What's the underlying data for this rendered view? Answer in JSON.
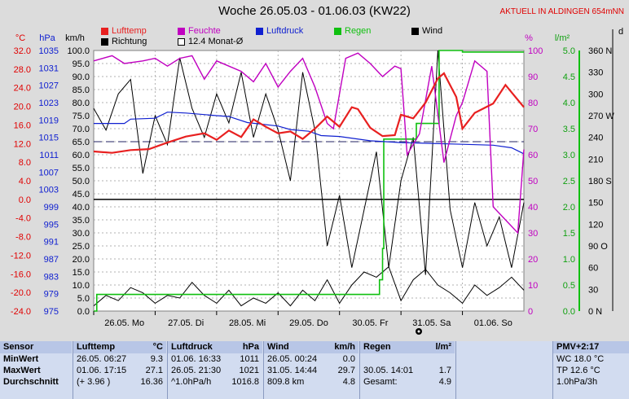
{
  "title": "Woche 26.05.03 - 01.06.03 (KW22)",
  "station": "AKTUELL IN ALDINGEN 654mNN",
  "legend": [
    {
      "label": "Lufttemp",
      "color": "#e82020"
    },
    {
      "label": "Feuchte",
      "color": "#c000c0"
    },
    {
      "label": "Luftdruck",
      "color": "#1020d0"
    },
    {
      "label": "Regen",
      "color": "#10c010"
    },
    {
      "label": "Wind",
      "color": "#000000"
    },
    {
      "label": "Richtung",
      "color": "#000000"
    },
    {
      "label": "12.4 Monat-Ø",
      "color": "#ffffff"
    }
  ],
  "units": {
    "temp": "°C",
    "pressure": "hPa",
    "wind": "km/h",
    "humidity": "%",
    "rain": "l/m²",
    "direction": "d"
  },
  "axes": {
    "temp": {
      "ticks": [
        "32.0",
        "28.0",
        "24.0",
        "20.0",
        "16.0",
        "12.0",
        "8.0",
        "4.0",
        "0.0",
        "-4.0",
        "-8.0",
        "-12.0",
        "-16.0",
        "-20.0",
        "-24.0"
      ]
    },
    "pressure": {
      "ticks": [
        "1035",
        "1031",
        "1027",
        "1023",
        "1019",
        "1015",
        "1011",
        "1007",
        "1003",
        "999",
        "995",
        "991",
        "987",
        "983",
        "979",
        "975"
      ]
    },
    "wind": {
      "ticks": [
        "100.0",
        "95.0",
        "90.0",
        "85.0",
        "80.0",
        "75.0",
        "70.0",
        "65.0",
        "60.0",
        "55.0",
        "50.0",
        "45.0",
        "40.0",
        "35.0",
        "30.0",
        "25.0",
        "20.0",
        "15.0",
        "10.0",
        "5.0",
        "0.0"
      ]
    },
    "humidity": {
      "ticks": [
        "100",
        "90",
        "80",
        "70",
        "60",
        "50",
        "40",
        "30",
        "20",
        "10",
        "0"
      ]
    },
    "rain": {
      "ticks": [
        "5.0",
        "4.5",
        "4.0",
        "3.5",
        "3.0",
        "2.5",
        "2.0",
        "1.5",
        "1.0",
        "0.5",
        "0.0"
      ]
    },
    "direction": {
      "ticks": [
        "360 N",
        "330",
        "300",
        "270 W",
        "240",
        "210",
        "180 S",
        "150",
        "120",
        "90 O",
        "60",
        "30",
        "0 N"
      ]
    }
  },
  "chart_data": {
    "type": "line",
    "title": "Woche 26.05.03 - 01.06.03 (KW22)",
    "x_ticks": [
      "26.05. Mo",
      "27.05. Di",
      "28.05. Mi",
      "29.05. Do",
      "30.05. Fr",
      "31.05. Sa",
      "01.06. So"
    ],
    "x_range_days": [
      0,
      7
    ],
    "series": [
      {
        "name": "Lufttemp",
        "unit": "°C",
        "color": "#e82020",
        "x": [
          0,
          0.3,
          0.6,
          0.9,
          1.2,
          1.5,
          1.8,
          2.0,
          2.2,
          2.4,
          2.6,
          2.8,
          3.0,
          3.2,
          3.4,
          3.6,
          3.8,
          4.0,
          4.2,
          4.3,
          4.5,
          4.7,
          4.9,
          5.0,
          5.2,
          5.4,
          5.6,
          5.7,
          5.9,
          6.0,
          6.2,
          6.5,
          6.7,
          7.0
        ],
        "y": [
          10.3,
          10.0,
          10.6,
          10.8,
          12.2,
          13.5,
          14.2,
          12.8,
          14.8,
          13.4,
          17.2,
          15.6,
          14.2,
          14.6,
          13.0,
          15.2,
          17.8,
          15.6,
          19.8,
          19.4,
          15.4,
          13.6,
          13.8,
          18.2,
          17.4,
          20.8,
          26.0,
          27.1,
          22.0,
          15.2,
          18.6,
          20.6,
          24.6,
          19.8
        ]
      },
      {
        "name": "Feuchte",
        "unit": "%",
        "color": "#c000c0",
        "x": [
          0,
          0.3,
          0.5,
          0.8,
          1.0,
          1.2,
          1.4,
          1.6,
          1.8,
          2.0,
          2.2,
          2.4,
          2.6,
          2.8,
          3.0,
          3.2,
          3.4,
          3.6,
          3.8,
          3.9,
          4.1,
          4.3,
          4.5,
          4.7,
          4.9,
          5.0,
          5.1,
          5.3,
          5.5,
          5.7,
          5.9,
          6.0,
          6.2,
          6.4,
          6.5,
          6.7,
          6.9,
          7.0
        ],
        "y": [
          96,
          98,
          95,
          96,
          97,
          94,
          97,
          98,
          89,
          96,
          94,
          92,
          88,
          95,
          86,
          92,
          97,
          86,
          72,
          70,
          97,
          99,
          95,
          90,
          94,
          93,
          60,
          68,
          94,
          57,
          75,
          80,
          96,
          92,
          40,
          35,
          30,
          62
        ]
      },
      {
        "name": "Luftdruck",
        "unit": "hPa",
        "color": "#1020d0",
        "x": [
          0,
          0.5,
          0.6,
          1.0,
          1.2,
          1.5,
          2.0,
          2.2,
          2.5,
          3.0,
          3.2,
          3.5,
          3.7,
          4.0,
          4.5,
          5.0,
          5.5,
          6.0,
          6.5,
          6.8,
          7.0
        ],
        "y": [
          1018.2,
          1018.2,
          1019.2,
          1019.4,
          1020.8,
          1020.6,
          1020.0,
          1019.8,
          1018.4,
          1017.6,
          1016.8,
          1016.4,
          1015.4,
          1015.2,
          1014.2,
          1013.8,
          1013.6,
          1013.4,
          1013.2,
          1012.6,
          1011.2
        ]
      },
      {
        "name": "Regen",
        "unit": "l/m²",
        "color": "#10c010",
        "x": [
          0,
          0.05,
          4.6,
          4.65,
          4.7,
          4.72,
          5.2,
          5.25,
          5.6,
          5.62,
          6.0,
          7.0
        ],
        "y": [
          0,
          0.32,
          0.32,
          0.6,
          1.2,
          3.3,
          3.3,
          3.6,
          3.6,
          5.0,
          4.97,
          4.97
        ]
      },
      {
        "name": "Wind",
        "unit": "km/h",
        "color": "#000000",
        "x": [
          0,
          0.2,
          0.4,
          0.6,
          0.8,
          1.0,
          1.2,
          1.4,
          1.6,
          1.8,
          2.0,
          2.2,
          2.4,
          2.6,
          2.8,
          3.0,
          3.2,
          3.4,
          3.6,
          3.8,
          4.0,
          4.2,
          4.4,
          4.6,
          4.8,
          5.0,
          5.2,
          5.4,
          5.6,
          5.8,
          6.0,
          6.2,
          6.4,
          6.6,
          6.8,
          7.0
        ],
        "y": [
          2,
          6,
          4,
          9,
          7,
          3,
          6,
          5,
          11,
          6,
          3,
          8,
          2,
          5,
          3,
          7,
          2,
          8,
          4,
          12,
          3,
          10,
          15,
          13,
          17,
          4,
          12,
          16,
          10,
          7,
          3,
          10,
          6,
          9,
          13,
          8
        ]
      },
      {
        "name": "Richtung",
        "unit": "d",
        "color": "#000000",
        "x": [
          0,
          0.2,
          0.4,
          0.6,
          0.8,
          1.0,
          1.2,
          1.4,
          1.6,
          1.8,
          2.0,
          2.2,
          2.4,
          2.6,
          2.8,
          3.0,
          3.2,
          3.4,
          3.6,
          3.8,
          4.0,
          4.2,
          4.4,
          4.6,
          4.8,
          5.0,
          5.2,
          5.4,
          5.6,
          5.8,
          6.0,
          6.2,
          6.4,
          6.6,
          6.8,
          7.0
        ],
        "y": [
          280,
          250,
          300,
          320,
          190,
          270,
          230,
          350,
          280,
          240,
          300,
          260,
          330,
          240,
          300,
          250,
          180,
          330,
          250,
          90,
          160,
          60,
          140,
          220,
          60,
          180,
          240,
          50,
          360,
          140,
          60,
          150,
          90,
          130,
          60,
          150
        ]
      }
    ],
    "reference_lines": [
      {
        "label": "12.4 Monat-Ø",
        "unit": "°C",
        "value": 12.4
      }
    ]
  },
  "stats": {
    "sensor": {
      "head": "Sensor",
      "rows": [
        "MinWert",
        "MaxWert",
        "Durchschnitt"
      ]
    },
    "temp": {
      "head": "Lufttemp",
      "unit": "°C",
      "rows": [
        [
          "26.05.  06:27",
          "9.3"
        ],
        [
          "01.06.  17:15",
          "27.1"
        ],
        [
          "(+ 3.96 )",
          "16.36"
        ]
      ]
    },
    "pressure": {
      "head": "Luftdruck",
      "unit": "hPa",
      "rows": [
        [
          "01.06.  16:33",
          "1011"
        ],
        [
          "26.05.  21:30",
          "1021"
        ],
        [
          "^1.0hPa/h",
          "1016.8"
        ]
      ]
    },
    "wind": {
      "head": "Wind",
      "unit": "km/h",
      "rows": [
        [
          "26.05.  00:24",
          "0.0"
        ],
        [
          "31.05.  14:44",
          "29.7"
        ],
        [
          "809.8 km",
          "4.8"
        ]
      ]
    },
    "rain": {
      "head": "Regen",
      "unit": "l/m²",
      "rows": [
        [
          "",
          ""
        ],
        [
          "30.05.  14:01",
          "1.7"
        ],
        [
          "Gesamt:",
          "4.9"
        ]
      ]
    },
    "pmv": {
      "head": "PMV+2:17",
      "rows": [
        "WC 18.0 °C",
        "TP 12.6 °C",
        "1.0hPa/3h"
      ]
    }
  }
}
